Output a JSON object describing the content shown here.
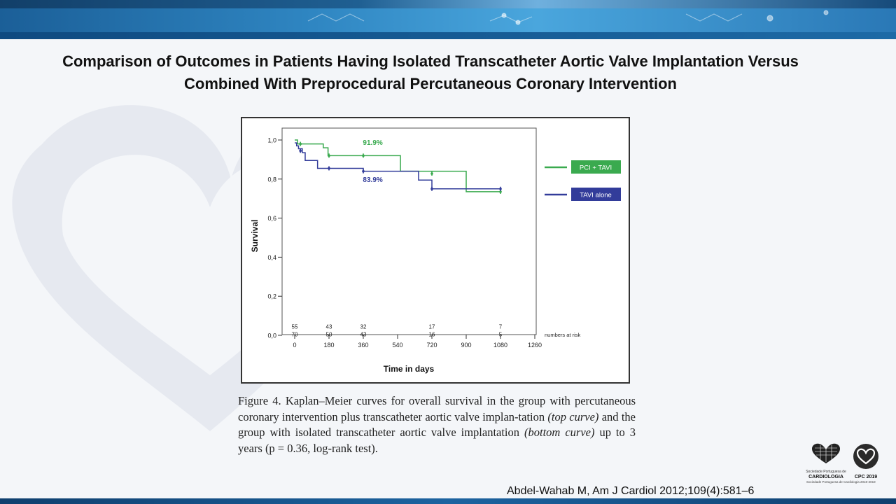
{
  "slide": {
    "title_line1": "Comparison of Outcomes in Patients Having Isolated Transcatheter Aortic Valve Implantation Versus",
    "title_line2": "Combined With Preprocedural Percutaneous Coronary Intervention",
    "caption": {
      "part1": "Figure 4. Kaplan–Meier curves for overall survival in the group with percutaneous coronary intervention plus transcatheter aortic valve implan-tation ",
      "italic1": "(top curve)",
      "part2": " and the group with isolated transcatheter aortic valve implantation ",
      "italic2": "(bottom curve)",
      "part3": " up to 3 years (p = 0.36, log-rank test)."
    },
    "citation": "Abdel-Wahab M, Am J Cardiol 2012;109(4):581–6",
    "logos": {
      "spc_small": "Sociedade Portuguesa de",
      "spc_main": "CARDIOLOGIA",
      "cpc_label": "CPC 2019",
      "footer_text": "Sociedade Portuguesa de Cardiologia 2018-2019"
    },
    "colors": {
      "pci_tavi": "#3aaa4f",
      "tavi_alone": "#323c9a",
      "banner": "#2f86c2"
    }
  },
  "chart_data": {
    "type": "line",
    "xlabel": "Time in days",
    "ylabel": "Survival",
    "xlim": [
      0,
      1260
    ],
    "ylim": [
      0,
      1.0
    ],
    "x_ticks": [
      0,
      180,
      360,
      540,
      720,
      900,
      1080,
      1260
    ],
    "y_ticks": [
      0.0,
      0.2,
      0.4,
      0.6,
      0.8,
      1.0
    ],
    "y_tick_labels": [
      "0,0",
      "0,2",
      "0,4",
      "0,6",
      "0,8",
      "1,0"
    ],
    "legend_position": "right",
    "series": [
      {
        "name": "PCI + TAVI",
        "color": "#3aaa4f",
        "steps": [
          [
            0,
            1.0
          ],
          [
            15,
            0.98
          ],
          [
            150,
            0.96
          ],
          [
            175,
            0.92
          ],
          [
            555,
            0.84
          ],
          [
            900,
            0.735
          ],
          [
            1080,
            0.735
          ]
        ],
        "censor_marks": [
          [
            30,
            0.98
          ],
          [
            180,
            0.92
          ],
          [
            360,
            0.92
          ],
          [
            720,
            0.828
          ],
          [
            1080,
            0.735
          ]
        ],
        "annotation": "91.9%",
        "annotation_at": [
          410,
          0.975
        ]
      },
      {
        "name": "TAVI alone",
        "color": "#323c9a",
        "steps": [
          [
            0,
            0.985
          ],
          [
            10,
            0.97
          ],
          [
            20,
            0.955
          ],
          [
            40,
            0.935
          ],
          [
            55,
            0.895
          ],
          [
            120,
            0.855
          ],
          [
            360,
            0.84
          ],
          [
            650,
            0.795
          ],
          [
            720,
            0.75
          ],
          [
            890,
            0.75
          ],
          [
            1080,
            0.75
          ]
        ],
        "censor_marks": [
          [
            30,
            0.945
          ],
          [
            180,
            0.855
          ],
          [
            360,
            0.84
          ],
          [
            720,
            0.75
          ],
          [
            1080,
            0.75
          ]
        ],
        "annotation": "83.9%",
        "annotation_at": [
          410,
          0.785
        ]
      }
    ],
    "numbers_at_risk": {
      "label": "numbers at risk",
      "x": [
        0,
        180,
        360,
        720,
        1080
      ],
      "rows": [
        [
          "55",
          "43",
          "32",
          "17",
          "7"
        ],
        [
          "70",
          "50",
          "43",
          "16",
          "5"
        ]
      ]
    }
  }
}
